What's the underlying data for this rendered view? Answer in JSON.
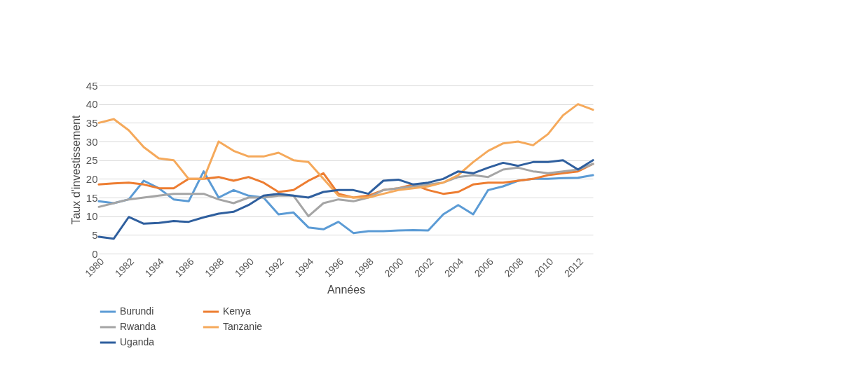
{
  "chart_data": {
    "type": "line",
    "xlabel": "Années",
    "ylabel": "Taux d'investissement",
    "x": [
      1980,
      1981,
      1982,
      1983,
      1984,
      1985,
      1986,
      1987,
      1988,
      1989,
      1990,
      1991,
      1992,
      1993,
      1994,
      1995,
      1996,
      1997,
      1998,
      1999,
      2000,
      2001,
      2002,
      2003,
      2004,
      2005,
      2006,
      2007,
      2008,
      2009,
      2010,
      2011,
      2012,
      2013
    ],
    "xlim": [
      1980,
      2013
    ],
    "xticks": [
      1980,
      1982,
      1984,
      1986,
      1988,
      1990,
      1992,
      1994,
      1996,
      1998,
      2000,
      2002,
      2004,
      2006,
      2008,
      2010,
      2012
    ],
    "ylim": [
      0,
      45
    ],
    "yticks": [
      0,
      5,
      10,
      15,
      20,
      25,
      30,
      35,
      40,
      45
    ],
    "grid": "y",
    "legend": "bottom left",
    "series": [
      {
        "name": "Burundi",
        "color": "#5b9bd5",
        "values": [
          14,
          13.5,
          14.5,
          19.5,
          17.5,
          14.5,
          14,
          22,
          15,
          17,
          15.5,
          15,
          10.5,
          11,
          7,
          6.5,
          8.5,
          5.5,
          6,
          6,
          6.2,
          6.3,
          6.2,
          10.5,
          13,
          10.5,
          17,
          18,
          19.5,
          20,
          20,
          20.2,
          20.3,
          21
        ]
      },
      {
        "name": "Kenya",
        "color": "#ed7d31",
        "values": [
          18.5,
          18.8,
          19,
          18.5,
          17.5,
          17.5,
          20,
          20,
          20.5,
          19.5,
          20.5,
          19,
          16.5,
          17,
          19.5,
          21.5,
          16,
          15,
          15.5,
          17,
          17.5,
          18.5,
          17,
          16,
          16.5,
          18.5,
          19,
          19,
          19.5,
          20,
          21,
          21.5,
          22,
          24
        ]
      },
      {
        "name": "Rwanda",
        "color": "#a5a5a5",
        "values": [
          12.5,
          13.5,
          14.5,
          15,
          15.5,
          16,
          16,
          16,
          14.5,
          13.5,
          15,
          15,
          15.5,
          15.5,
          10,
          13.5,
          14.5,
          14,
          15,
          17,
          17.5,
          18,
          18.5,
          19,
          20.5,
          21,
          20.5,
          22.5,
          23,
          22,
          21.5,
          22,
          22.5,
          24
        ]
      },
      {
        "name": "Tanzanie",
        "color": "#f5a95b",
        "values": [
          35,
          36,
          33,
          28.5,
          25.5,
          25,
          20,
          20,
          30,
          27.5,
          26,
          26,
          27,
          25,
          24.5,
          20,
          15.5,
          15,
          15,
          16,
          17,
          17.5,
          18,
          19,
          21,
          24.5,
          27.5,
          29.5,
          30,
          29,
          32,
          37,
          40,
          38.5
        ]
      },
      {
        "name": "Uganda",
        "color": "#2f5f9e",
        "values": [
          4.5,
          4,
          9.8,
          8,
          8.2,
          8.7,
          8.5,
          9.7,
          10.7,
          11.2,
          13,
          15.5,
          16,
          15.5,
          15,
          16.5,
          17,
          17,
          16,
          19.5,
          19.8,
          18.5,
          19,
          20,
          22,
          21.5,
          23,
          24.3,
          23.5,
          24.5,
          24.5,
          25,
          22.5,
          25
        ]
      }
    ]
  }
}
